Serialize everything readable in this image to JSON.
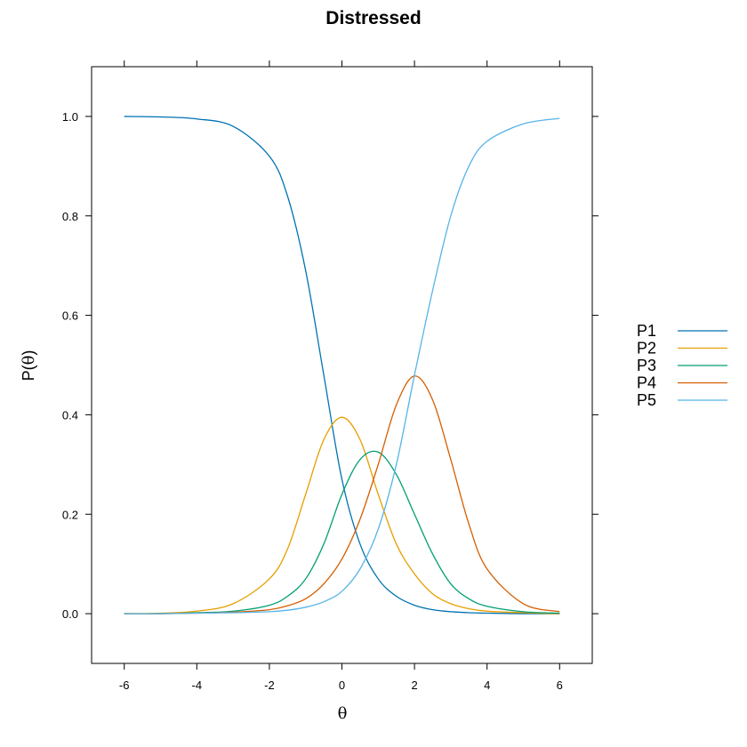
{
  "chart_data": {
    "type": "line",
    "title": "Distressed",
    "xlabel": "θ",
    "ylabel_prefix": "P(",
    "ylabel_symbol": "θ",
    "ylabel_suffix": ")",
    "xlim": [
      -6.9,
      6.9
    ],
    "ylim": [
      -0.1,
      1.1
    ],
    "x_ticks": [
      -6,
      -4,
      -2,
      0,
      2,
      4,
      6
    ],
    "x_tick_labels": [
      "-6",
      "-4",
      "-2",
      "0",
      "2",
      "4",
      "6"
    ],
    "y_ticks": [
      0.0,
      0.2,
      0.4,
      0.6,
      0.8,
      1.0
    ],
    "y_tick_labels": [
      "0.0",
      "0.2",
      "0.4",
      "0.6",
      "0.8",
      "1.0"
    ],
    "grid": false,
    "legend_position": "right",
    "x": [
      -6,
      -5,
      -4,
      -3,
      -2,
      -1.5,
      -1,
      -0.5,
      0,
      0.5,
      1,
      1.5,
      2,
      2.5,
      3,
      3.5,
      4,
      5,
      6
    ],
    "series": [
      {
        "name": "P1",
        "color": "#0072B2",
        "values": [
          1.0,
          0.999,
          0.995,
          0.98,
          0.92,
          0.84,
          0.69,
          0.48,
          0.27,
          0.14,
          0.07,
          0.035,
          0.017,
          0.008,
          0.004,
          0.002,
          0.001,
          0.0,
          0.0
        ]
      },
      {
        "name": "P2",
        "color": "#E69F00",
        "values": [
          0.0,
          0.001,
          0.005,
          0.02,
          0.07,
          0.13,
          0.24,
          0.35,
          0.395,
          0.35,
          0.24,
          0.14,
          0.08,
          0.04,
          0.02,
          0.01,
          0.005,
          0.002,
          0.0
        ]
      },
      {
        "name": "P3",
        "color": "#009E73",
        "values": [
          0.0,
          0.0,
          0.002,
          0.005,
          0.017,
          0.035,
          0.07,
          0.14,
          0.24,
          0.31,
          0.325,
          0.28,
          0.2,
          0.12,
          0.06,
          0.03,
          0.015,
          0.004,
          0.001
        ]
      },
      {
        "name": "P4",
        "color": "#D55E00",
        "values": [
          0.0,
          0.0,
          0.001,
          0.003,
          0.008,
          0.016,
          0.03,
          0.06,
          0.11,
          0.19,
          0.3,
          0.42,
          0.478,
          0.43,
          0.31,
          0.18,
          0.09,
          0.02,
          0.004
        ]
      },
      {
        "name": "P5",
        "color": "#56B4E9",
        "values": [
          0.0,
          0.0,
          0.001,
          0.002,
          0.004,
          0.007,
          0.013,
          0.024,
          0.045,
          0.09,
          0.17,
          0.3,
          0.48,
          0.65,
          0.8,
          0.9,
          0.95,
          0.985,
          0.996
        ]
      }
    ]
  }
}
